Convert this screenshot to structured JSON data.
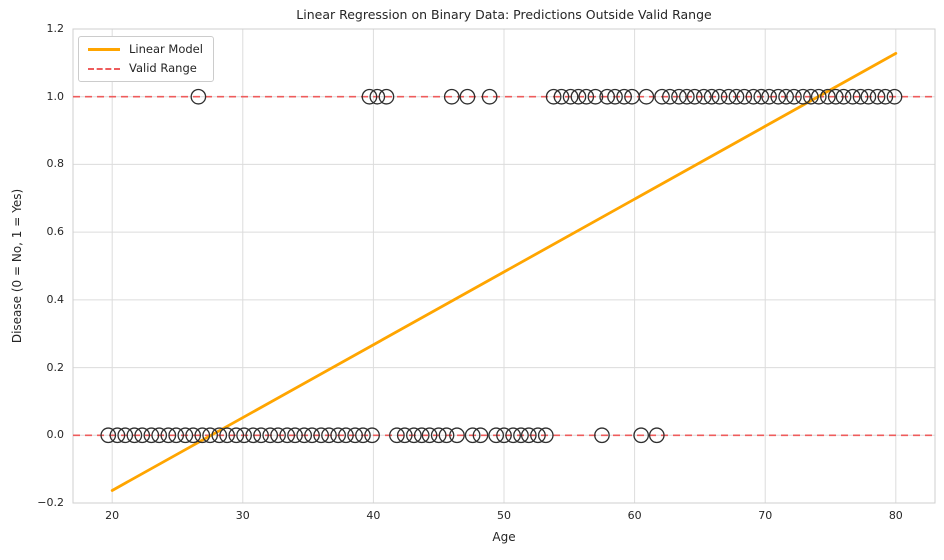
{
  "figure": {
    "background": "#ffffff",
    "grid_color": "#dcdcdc",
    "border_color": "#cfcfcf",
    "text_color": "#262626"
  },
  "chart_data": {
    "type": "scatter",
    "title": "Linear Regression on Binary Data: Predictions Outside Valid Range",
    "xlabel": "Age",
    "ylabel": "Disease (0 = No, 1 = Yes)",
    "xlim": [
      17,
      83
    ],
    "ylim": [
      -0.2,
      1.2
    ],
    "xticks": [
      20,
      30,
      40,
      50,
      60,
      70,
      80
    ],
    "xtick_labels": [
      "20",
      "30",
      "40",
      "50",
      "60",
      "70",
      "80"
    ],
    "yticks": [
      -0.2,
      0.0,
      0.2,
      0.4,
      0.6,
      0.8,
      1.0,
      1.2
    ],
    "ytick_labels": [
      "−0.2",
      "0.0",
      "0.2",
      "0.4",
      "0.6",
      "0.8",
      "1.0",
      "1.2"
    ],
    "grid": true,
    "legend": {
      "position": "upper-left",
      "items": [
        {
          "label": "Linear Model",
          "style": "solid",
          "color": "#FFA500"
        },
        {
          "label": "Valid Range",
          "style": "dashed",
          "color": "#EE5C5C"
        }
      ]
    },
    "regression_line": {
      "name": "Linear Model",
      "color": "#FFA500",
      "width": 2.8,
      "x": [
        20,
        80
      ],
      "y": [
        -0.163,
        1.128
      ]
    },
    "valid_range_lines": {
      "name": "Valid Range",
      "color": "#EE5C5C",
      "style": "dashed",
      "width": 1.6,
      "y_values": [
        0,
        1
      ]
    },
    "scatter": {
      "marker": "open-circle",
      "edge_color": "#2f2f2f",
      "radius_px": 7.2,
      "disease_0_ages": [
        19.7,
        20.4,
        21.0,
        21.7,
        22.3,
        23.0,
        23.6,
        24.3,
        24.9,
        25.6,
        26.2,
        26.9,
        27.5,
        28.2,
        28.8,
        29.5,
        30.1,
        30.8,
        31.4,
        32.1,
        32.7,
        33.4,
        34.0,
        34.7,
        35.3,
        36.0,
        36.6,
        37.3,
        37.9,
        38.6,
        39.2,
        39.9,
        41.8,
        42.4,
        43.1,
        43.7,
        44.3,
        45.0,
        45.6,
        46.4,
        47.6,
        48.2,
        49.4,
        50.0,
        50.7,
        51.3,
        51.9,
        52.6,
        53.2,
        57.5,
        60.5,
        61.7
      ],
      "disease_1_ages": [
        26.6,
        39.7,
        40.3,
        41.0,
        46.0,
        47.2,
        48.9,
        53.8,
        54.4,
        55.1,
        55.7,
        56.3,
        57.0,
        57.9,
        58.5,
        59.2,
        59.8,
        60.9,
        62.1,
        62.7,
        63.4,
        64.0,
        64.6,
        65.3,
        65.9,
        66.5,
        67.2,
        67.8,
        68.4,
        69.1,
        69.7,
        70.3,
        71.0,
        71.6,
        72.2,
        72.9,
        73.5,
        74.1,
        74.8,
        75.4,
        76.0,
        76.7,
        77.3,
        77.9,
        78.6,
        79.2,
        79.9
      ]
    }
  }
}
